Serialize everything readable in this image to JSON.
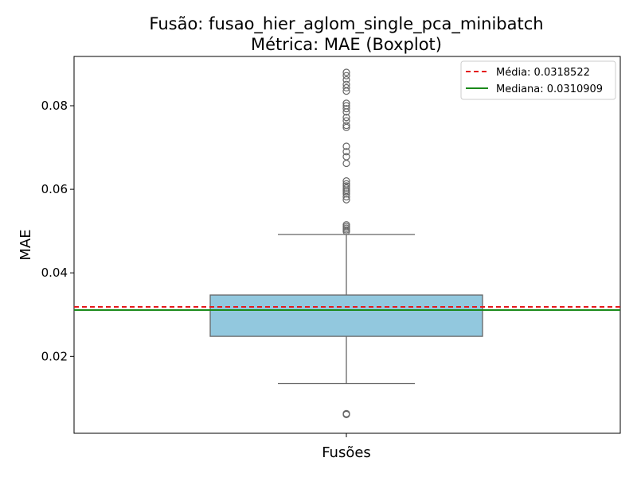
{
  "chart_data": {
    "type": "boxplot",
    "title_line1": "Fusão: fusao_hier_aglom_single_pca_minibatch",
    "title_line2": "Métrica: MAE (Boxplot)",
    "xlabel": "Fusões",
    "ylabel": "MAE",
    "ylim": [
      0.0016,
      0.0918
    ],
    "yticks": [
      0.02,
      0.04,
      0.06,
      0.08
    ],
    "ytick_labels": [
      "0.02",
      "0.04",
      "0.06",
      "0.08"
    ],
    "box": {
      "whisker_low": 0.0135,
      "q1": 0.0248,
      "median": 0.0311,
      "q3": 0.0347,
      "whisker_high": 0.0492,
      "fill_color": "#92c8de",
      "edge_color": "#666666"
    },
    "outliers": [
      0.0062,
      0.0063,
      0.0061,
      0.0503,
      0.0507,
      0.0511,
      0.0515,
      0.0499,
      0.0575,
      0.0582,
      0.0589,
      0.0594,
      0.0598,
      0.0603,
      0.0608,
      0.0613,
      0.062,
      0.0662,
      0.0678,
      0.069,
      0.0703,
      0.0748,
      0.0753,
      0.0764,
      0.0772,
      0.0785,
      0.0793,
      0.08,
      0.0806,
      0.0835,
      0.0843,
      0.0851,
      0.0862,
      0.0872,
      0.088
    ],
    "mean_line": {
      "value": 0.0318522,
      "color": "#e41a1c",
      "style": "dashed"
    },
    "median_line": {
      "value": 0.0310909,
      "color": "#1a8a1a",
      "style": "solid"
    },
    "legend": {
      "position": "top-right",
      "entries": [
        {
          "label": "Média: 0.0318522",
          "color": "#e41a1c",
          "style": "dashed"
        },
        {
          "label": "Mediana: 0.0310909",
          "color": "#1a8a1a",
          "style": "solid"
        }
      ]
    }
  }
}
